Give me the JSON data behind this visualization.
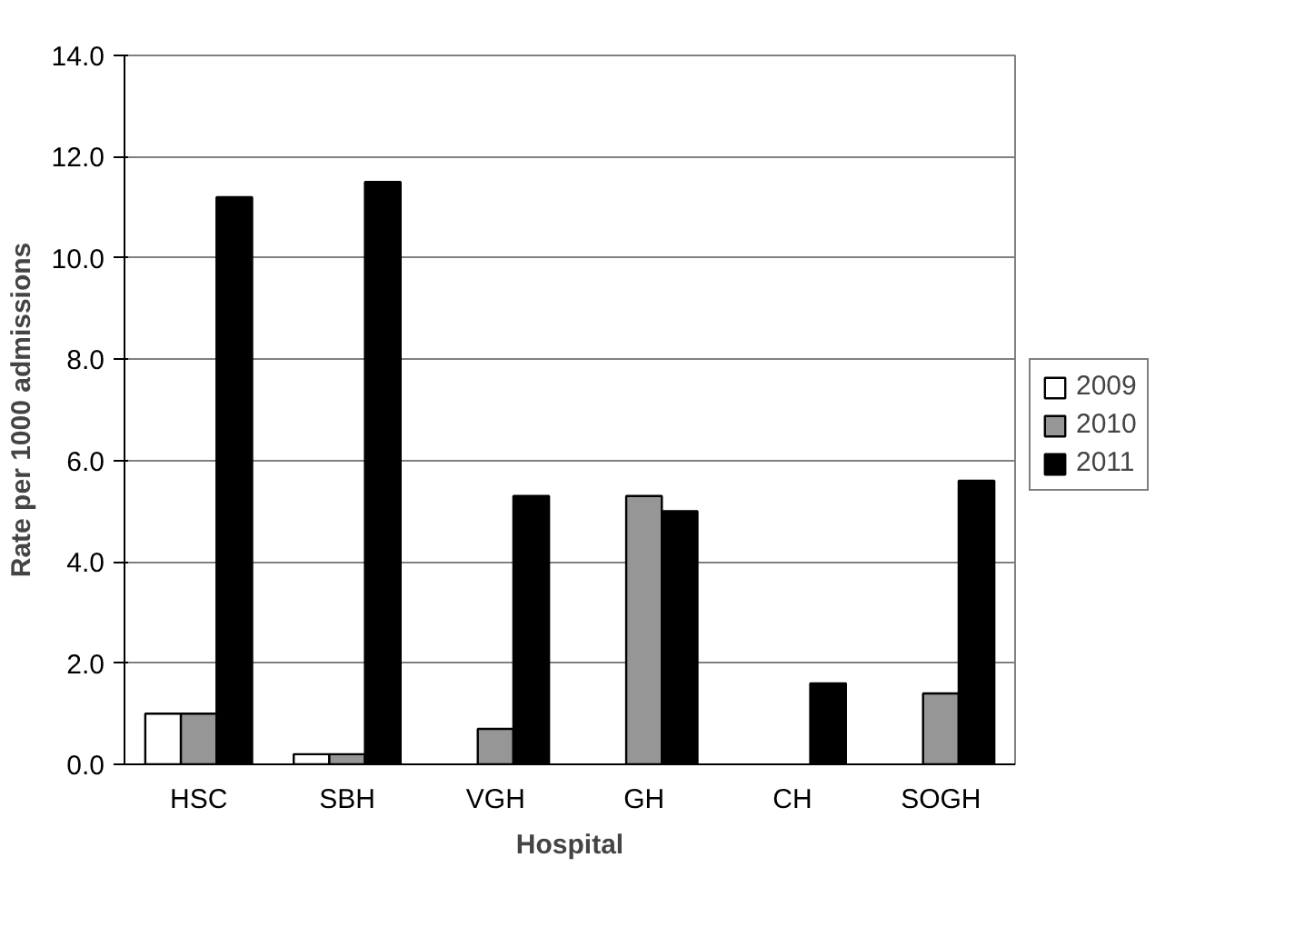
{
  "chart_data": {
    "type": "bar",
    "xlabel": "Hospital",
    "ylabel": "Rate per 1000 admissions",
    "categories": [
      "HSC",
      "SBH",
      "VGH",
      "GH",
      "CH",
      "SOGH"
    ],
    "series": [
      {
        "name": "2009",
        "color": "#ffffff",
        "values": [
          1.0,
          0.2,
          0,
          0,
          0,
          0
        ]
      },
      {
        "name": "2010",
        "color": "#969696",
        "values": [
          1.0,
          0.2,
          0.7,
          5.3,
          0,
          1.4
        ]
      },
      {
        "name": "2011",
        "color": "#000000",
        "values": [
          11.2,
          11.5,
          5.3,
          5.0,
          1.6,
          5.6
        ]
      }
    ],
    "ylim": [
      0,
      14
    ],
    "yticks": [
      {
        "value": 0,
        "label": "0.0"
      },
      {
        "value": 2,
        "label": "2.0"
      },
      {
        "value": 4,
        "label": "4.0"
      },
      {
        "value": 6,
        "label": "6.0"
      },
      {
        "value": 8,
        "label": "8.0"
      },
      {
        "value": 10,
        "label": "10.0"
      },
      {
        "value": 12,
        "label": "12.0"
      },
      {
        "value": 14,
        "label": "14.0"
      }
    ],
    "grid": "y",
    "legend": "right"
  }
}
